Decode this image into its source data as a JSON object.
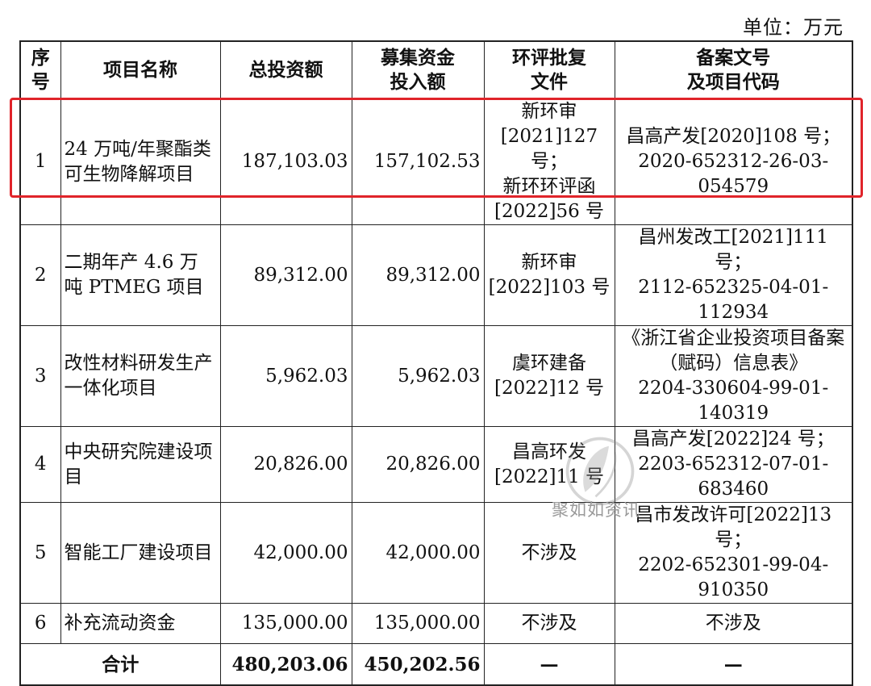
{
  "unit_label": "单位：万元",
  "headers": {
    "seq": "序\n号",
    "project": "项目名称",
    "total": "总投资额",
    "raised": "募集资金\n投入额",
    "approval": "环评批复\n文件",
    "filing": "备案文号\n及项目代码"
  },
  "rows": [
    {
      "seq": "1",
      "project": "24 万吨/年聚酯类可生物降解项目",
      "total": "187,103.03",
      "raised": "157,102.53",
      "approval": "新环审\n[2021]127 号；\n新环环评函\n[2022]56 号",
      "filing": "昌高产发[2020]108 号；\n2020-652312-26-03-054579"
    },
    {
      "seq": "2",
      "project": "二期年产 4.6 万吨 PTMEG 项目",
      "total": "89,312.00",
      "raised": "89,312.00",
      "approval": "新环审\n[2022]103 号",
      "filing": "昌州发改工[2021]111 号；\n2112-652325-04-01-112934"
    },
    {
      "seq": "3",
      "project": "改性材料研发生产一体化项目",
      "total": "5,962.03",
      "raised": "5,962.03",
      "approval": "虞环建备\n[2022]12 号",
      "filing": "《浙江省企业投资项目备案（赋码）信息表》\n2204-330604-99-01-140319"
    },
    {
      "seq": "4",
      "project": "中央研究院建设项目",
      "total": "20,826.00",
      "raised": "20,826.00",
      "approval": "昌高环发\n[2022]11 号",
      "filing": "昌高产发[2022]24 号；\n2203-652312-07-01-683460"
    },
    {
      "seq": "5",
      "project": "智能工厂建设项目",
      "total": "42,000.00",
      "raised": "42,000.00",
      "approval": "不涉及",
      "filing": "昌市发改许可[2022]13 号；\n2202-652301-99-04-910350"
    },
    {
      "seq": "6",
      "project": "补充流动资金",
      "total": "135,000.00",
      "raised": "135,000.00",
      "approval": "不涉及",
      "filing": "不涉及"
    }
  ],
  "total_row": {
    "label": "合计",
    "total": "480,203.06",
    "raised": "450,202.56",
    "approval": "—",
    "filing": "—"
  },
  "watermark_text": "聚如如资讯",
  "colors": {
    "highlight": "#e0242a",
    "border": "#222222"
  }
}
